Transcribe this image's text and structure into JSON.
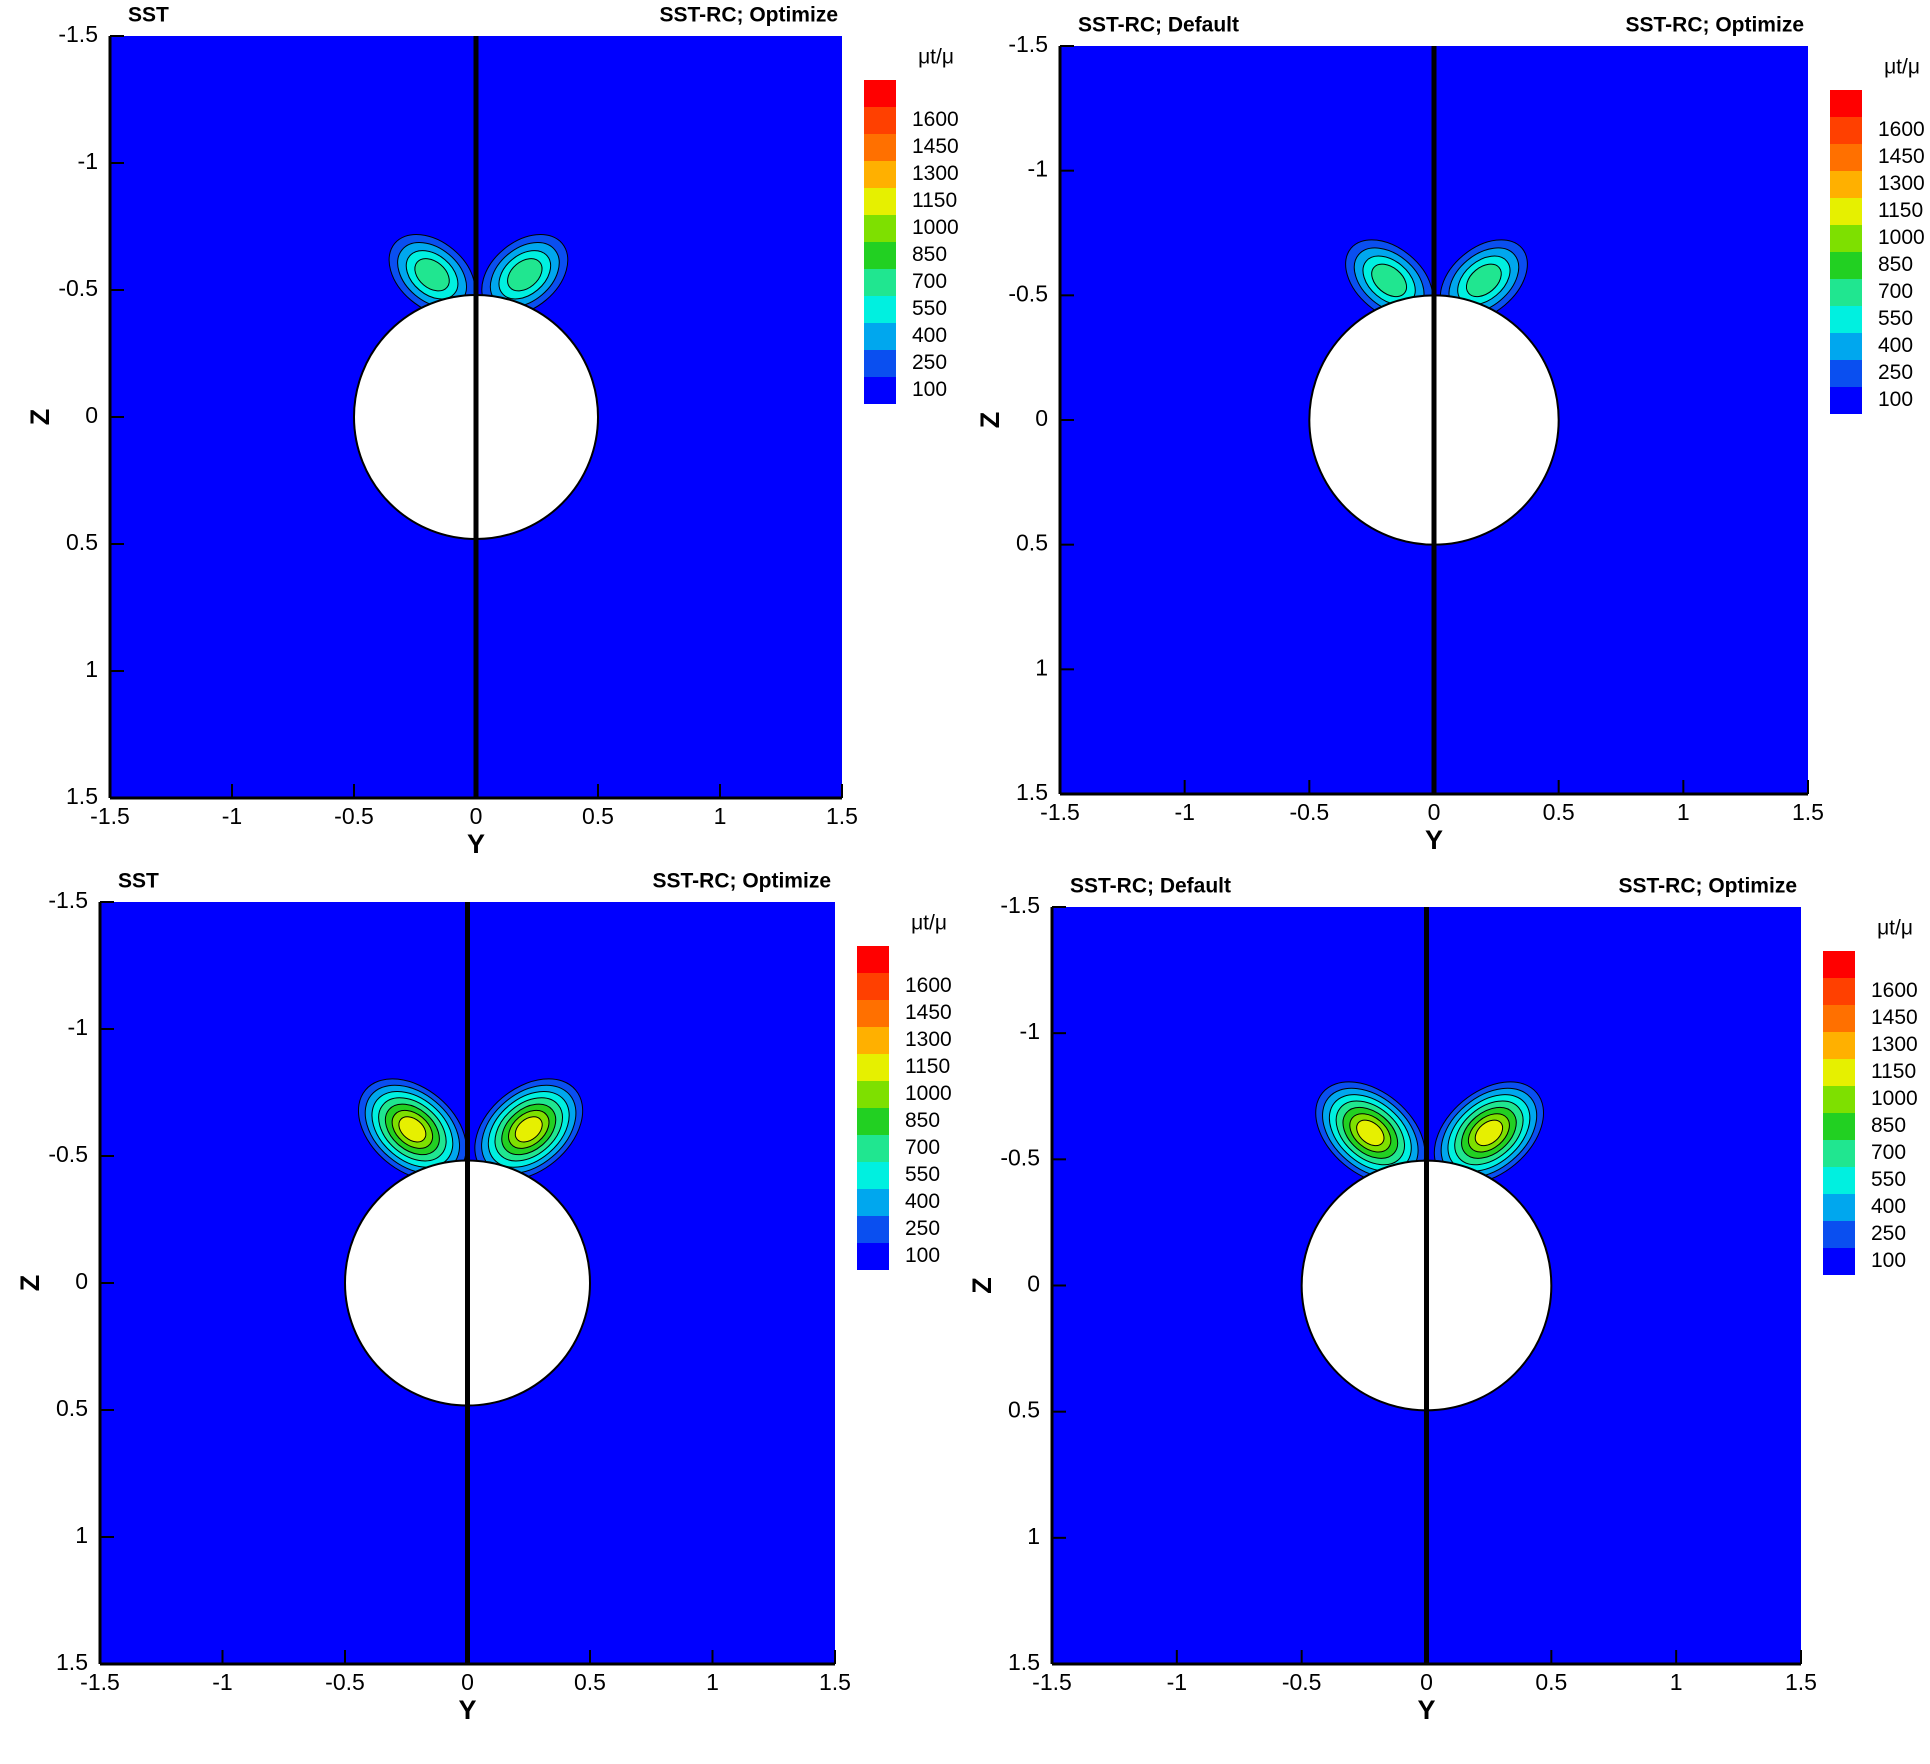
{
  "chart_data": [
    {
      "type": "contour",
      "title_left": "SST",
      "title_right": "SST-RC; Optimize",
      "xlabel": "Y",
      "ylabel": "Z",
      "xlim": [
        -1.5,
        1.5
      ],
      "ylim": [
        -1.5,
        1.5
      ],
      "y_inverted": true,
      "xticks": [
        -1.5,
        -1,
        -0.5,
        0,
        0.5,
        1,
        1.5
      ],
      "yticks": [
        -1.5,
        -1,
        -0.5,
        0,
        0.5,
        1,
        1.5
      ],
      "colorbar": {
        "title": "μt/μ",
        "levels": [
          100,
          250,
          400,
          550,
          700,
          850,
          1000,
          1150,
          1300,
          1450,
          1600
        ],
        "colors": [
          "#0000ff",
          "#0a4ff0",
          "#00a7ee",
          "#00f0e0",
          "#20e690",
          "#22d022",
          "#7ee000",
          "#e6f000",
          "#ffb000",
          "#ff7000",
          "#ff4000",
          "#ff0000"
        ]
      }
    },
    {
      "type": "contour",
      "title_left": "SST-RC; Default",
      "title_right": "SST-RC; Optimize",
      "xlabel": "Y",
      "ylabel": "Z",
      "xlim": [
        -1.5,
        1.5
      ],
      "ylim": [
        -1.5,
        1.5
      ],
      "y_inverted": true,
      "xticks": [
        -1.5,
        -1,
        -0.5,
        0,
        0.5,
        1,
        1.5
      ],
      "yticks": [
        -1.5,
        -1,
        -0.5,
        0,
        0.5,
        1,
        1.5
      ],
      "colorbar": {
        "title": "μt/μ",
        "levels": [
          100,
          250,
          400,
          550,
          700,
          850,
          1000,
          1150,
          1300,
          1450,
          1600
        ],
        "colors": [
          "#0000ff",
          "#0a4ff0",
          "#00a7ee",
          "#00f0e0",
          "#20e690",
          "#22d022",
          "#7ee000",
          "#e6f000",
          "#ffb000",
          "#ff7000",
          "#ff4000",
          "#ff0000"
        ]
      }
    },
    {
      "type": "contour",
      "title_left": "SST",
      "title_right": "SST-RC; Optimize",
      "xlabel": "Y",
      "ylabel": "Z",
      "xlim": [
        -1.5,
        1.5
      ],
      "ylim": [
        -1.5,
        1.5
      ],
      "y_inverted": true,
      "xticks": [
        -1.5,
        -1,
        -0.5,
        0,
        0.5,
        1,
        1.5
      ],
      "yticks": [
        -1.5,
        -1,
        -0.5,
        0,
        0.5,
        1,
        1.5
      ],
      "colorbar": {
        "title": "μt/μ",
        "levels": [
          100,
          250,
          400,
          550,
          700,
          850,
          1000,
          1150,
          1300,
          1450,
          1600
        ],
        "colors": [
          "#0000ff",
          "#0a4ff0",
          "#00a7ee",
          "#00f0e0",
          "#20e690",
          "#22d022",
          "#7ee000",
          "#e6f000",
          "#ffb000",
          "#ff7000",
          "#ff4000",
          "#ff0000"
        ]
      }
    },
    {
      "type": "contour",
      "title_left": "SST-RC; Default",
      "title_right": "SST-RC; Optimize",
      "xlabel": "Y",
      "ylabel": "Z",
      "xlim": [
        -1.5,
        1.5
      ],
      "ylim": [
        -1.5,
        1.5
      ],
      "y_inverted": true,
      "xticks": [
        -1.5,
        -1,
        -0.5,
        0,
        0.5,
        1,
        1.5
      ],
      "yticks": [
        -1.5,
        -1,
        -0.5,
        0,
        0.5,
        1,
        1.5
      ],
      "colorbar": {
        "title": "μt/μ",
        "levels": [
          100,
          250,
          400,
          550,
          700,
          850,
          1000,
          1150,
          1300,
          1450,
          1600
        ],
        "colors": [
          "#0000ff",
          "#0a4ff0",
          "#00a7ee",
          "#00f0e0",
          "#20e690",
          "#22d022",
          "#7ee000",
          "#e6f000",
          "#ffb000",
          "#ff7000",
          "#ff4000",
          "#ff0000"
        ]
      }
    }
  ]
}
